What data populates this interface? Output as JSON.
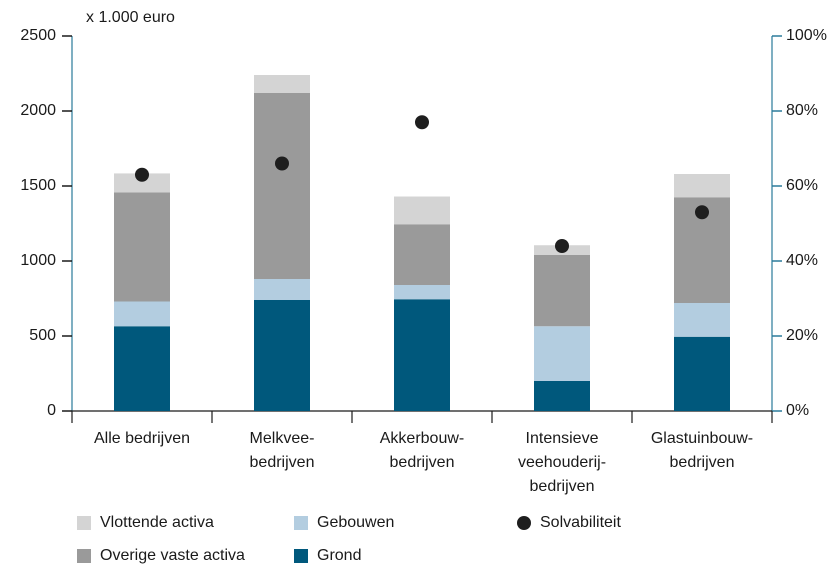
{
  "chart_data": {
    "type": "bar",
    "stacked": true,
    "ylabel": "x 1.000 euro",
    "categories": [
      [
        "Alle bedrijven"
      ],
      [
        "Melkvee-",
        "bedrijven"
      ],
      [
        "Akkerbouw-",
        "bedrijven"
      ],
      [
        "Intensieve",
        "veehouderij-",
        "bedrijven"
      ],
      [
        "Glastuinbouw-",
        "bedrijven"
      ]
    ],
    "series": [
      {
        "name": "Grond",
        "color": "#00587c",
        "values": [
          565,
          740,
          745,
          200,
          495
        ]
      },
      {
        "name": "Gebouwen",
        "color": "#b3cde0",
        "values": [
          165,
          140,
          95,
          365,
          225
        ]
      },
      {
        "name": "Overige vaste activa",
        "color": "#9a9a9a",
        "values": [
          727,
          1240,
          405,
          475,
          705
        ]
      },
      {
        "name": "Vlottende activa",
        "color": "#d4d4d4",
        "values": [
          127,
          120,
          185,
          65,
          155
        ]
      },
      {
        "name": "Solvabiliteit",
        "color": "#1e1e1e",
        "type": "scatter",
        "axis": "y2",
        "values": [
          63,
          66,
          77,
          44,
          53
        ]
      }
    ],
    "ylim": [
      0,
      2500
    ],
    "yticks": [
      0,
      500,
      1000,
      1500,
      2000,
      2500
    ],
    "y2lim": [
      0,
      100
    ],
    "y2ticks": [
      {
        "value": 0,
        "label": "0%"
      },
      {
        "value": 20,
        "label": "20%"
      },
      {
        "value": 40,
        "label": "40%"
      },
      {
        "value": 60,
        "label": "60%"
      },
      {
        "value": 80,
        "label": "80%"
      },
      {
        "value": 100,
        "label": "100%"
      }
    ],
    "axis_color": "#2a7a9a"
  }
}
